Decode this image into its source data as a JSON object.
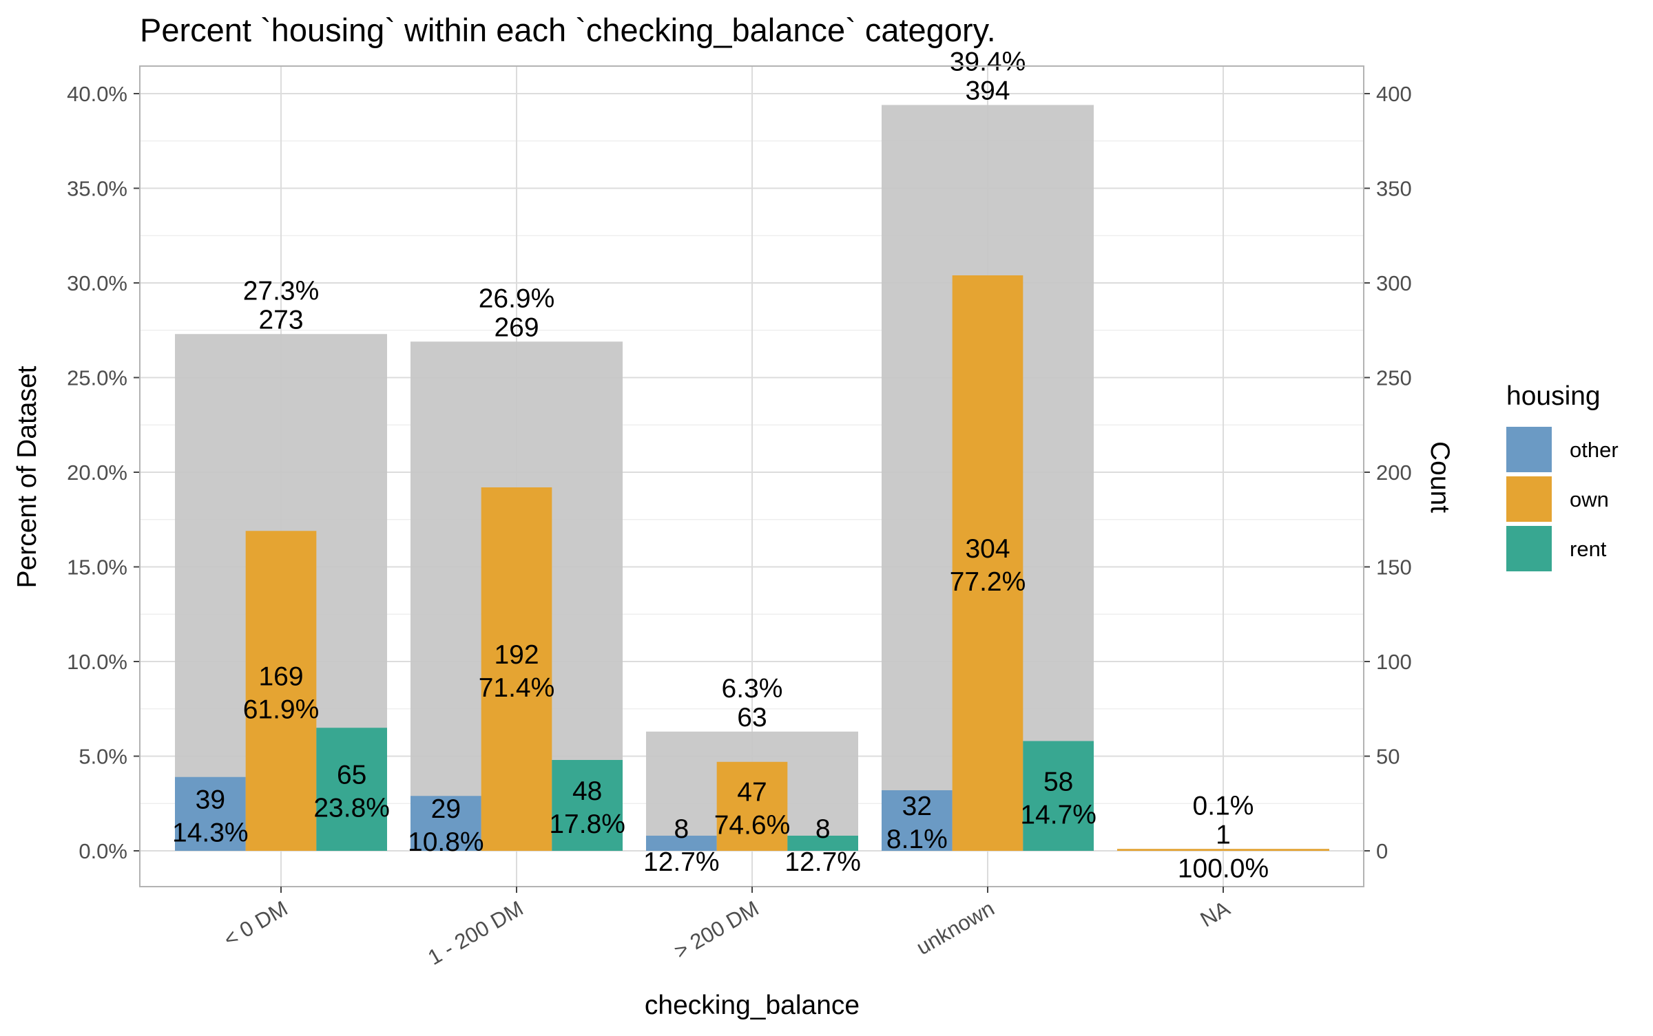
{
  "chart_data": {
    "type": "bar",
    "title": "Percent `housing` within each `checking_balance` category.",
    "xlabel": "checking_balance",
    "ylabel": "Percent of Dataset",
    "y2label": "Count",
    "ylim": [
      0,
      0.42
    ],
    "y_ticks": [
      "0.0%",
      "5.0%",
      "10.0%",
      "15.0%",
      "20.0%",
      "25.0%",
      "30.0%",
      "35.0%",
      "40.0%"
    ],
    "y_tick_values": [
      0,
      0.05,
      0.1,
      0.15,
      0.2,
      0.25,
      0.3,
      0.35,
      0.4
    ],
    "y2_ticks": [
      "0",
      "50",
      "100",
      "150",
      "200",
      "250",
      "300",
      "350",
      "400"
    ],
    "y2_tick_values": [
      0,
      50,
      100,
      150,
      200,
      250,
      300,
      350,
      400
    ],
    "grid": true,
    "legend": {
      "title": "housing",
      "placement": "right",
      "entries": [
        "other",
        "own",
        "rent"
      ]
    },
    "colors": {
      "other": "#6b9ac4",
      "own": "#e5a432",
      "rent": "#38a791",
      "total": "#c6c6c6"
    },
    "categories": [
      "< 0 DM",
      "1 - 200 DM",
      "> 200 DM",
      "unknown",
      "NA"
    ],
    "totals": [
      {
        "count": 273,
        "count_label": "273",
        "pct_label": "27.3%"
      },
      {
        "count": 269,
        "count_label": "269",
        "pct_label": "26.9%"
      },
      {
        "count": 63,
        "count_label": "63",
        "pct_label": "6.3%"
      },
      {
        "count": 394,
        "count_label": "394",
        "pct_label": "39.4%"
      },
      {
        "count": 1,
        "count_label": "1",
        "pct_label": "0.1%"
      }
    ],
    "series": [
      {
        "name": "other",
        "values": [
          39,
          29,
          8,
          32,
          null
        ],
        "count_labels": [
          "39",
          "29",
          "8",
          "32",
          null
        ],
        "pct_labels": [
          "14.3%",
          "10.8%",
          "12.7%",
          "8.1%",
          null
        ]
      },
      {
        "name": "own",
        "values": [
          169,
          192,
          47,
          304,
          1
        ],
        "count_labels": [
          "169",
          "192",
          "47",
          "304",
          null
        ],
        "pct_labels": [
          "61.9%",
          "71.4%",
          "74.6%",
          "77.2%",
          "100.0%"
        ]
      },
      {
        "name": "rent",
        "values": [
          65,
          48,
          8,
          58,
          null
        ],
        "count_labels": [
          "65",
          "48",
          "8",
          "58",
          null
        ],
        "pct_labels": [
          "23.8%",
          "17.8%",
          "12.7%",
          "14.7%",
          null
        ]
      }
    ]
  }
}
